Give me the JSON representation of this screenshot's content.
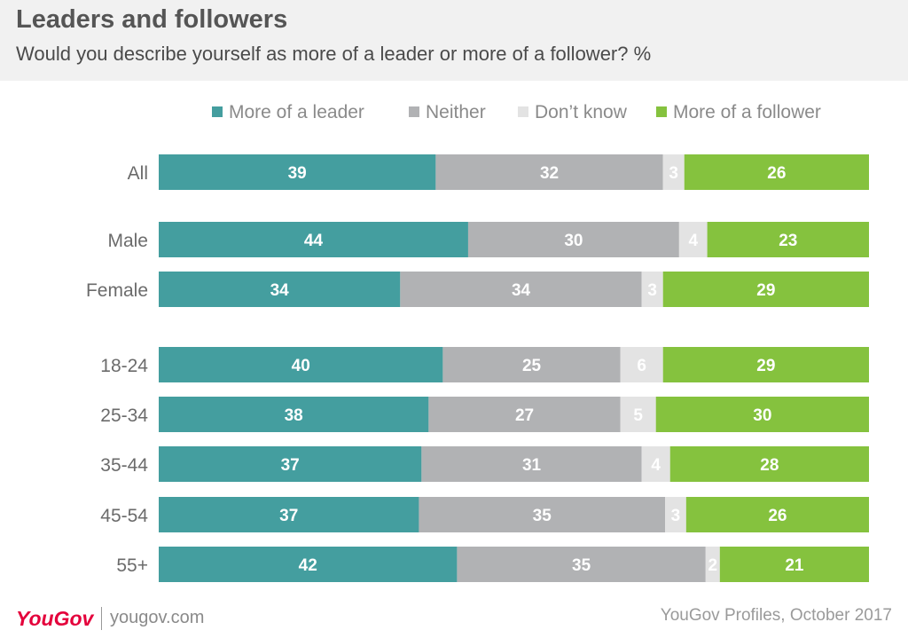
{
  "title": "Leaders and followers",
  "subtitle": "Would you describe yourself as more of a leader or more of a follower? %",
  "footer": {
    "logo": "YouGov",
    "url": "yougov.com",
    "source": "YouGov Profiles, October 2017"
  },
  "colors": {
    "leader": "#449e9f",
    "neither": "#b1b2b4",
    "dont_know": "#e3e3e3",
    "follower": "#85c23e"
  },
  "chart_data": {
    "type": "bar",
    "orientation": "horizontal",
    "stacked": true,
    "legend_position": "top",
    "categories": [
      "All",
      "Male",
      "Female",
      "18-24",
      "25-34",
      "35-44",
      "45-54",
      "55+"
    ],
    "series": [
      {
        "name": "More of a leader",
        "values": [
          39,
          44,
          34,
          40,
          38,
          37,
          37,
          42
        ]
      },
      {
        "name": "Neither",
        "values": [
          32,
          30,
          34,
          25,
          27,
          31,
          35,
          35
        ]
      },
      {
        "name": "Don’t know",
        "values": [
          3,
          4,
          3,
          6,
          5,
          4,
          3,
          2
        ]
      },
      {
        "name": "More of a follower",
        "values": [
          26,
          23,
          29,
          29,
          30,
          28,
          26,
          21
        ]
      }
    ]
  }
}
